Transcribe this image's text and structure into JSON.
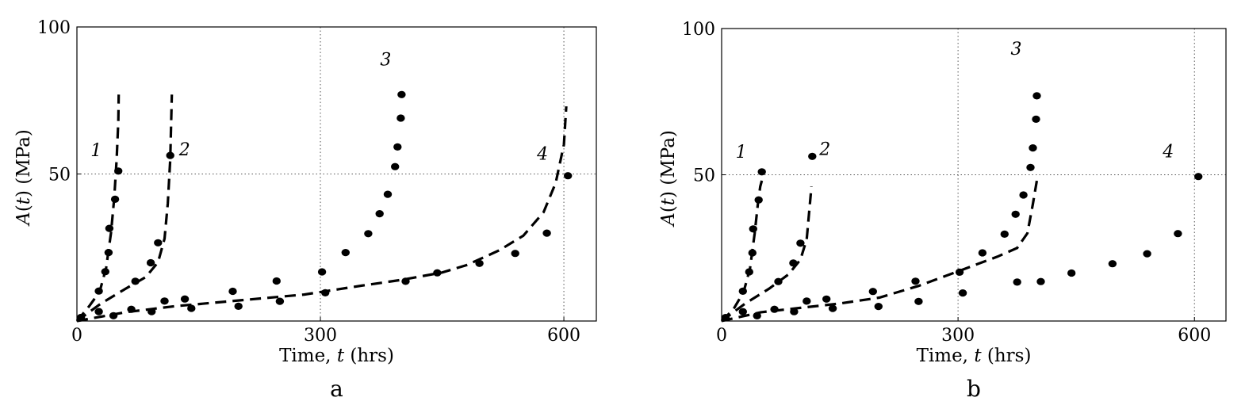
{
  "chart_data": [
    {
      "type": "scatter",
      "panel_label": "a",
      "xlabel": "Time, t (hrs)",
      "ylabel": "A(t) (MPa)",
      "xlim": [
        0,
        640
      ],
      "ylim": [
        0,
        100
      ],
      "xticks": [
        0,
        300,
        600
      ],
      "yticks": [
        50,
        100
      ],
      "grid": "dotted at x=300, x=600, y=50",
      "series": [
        {
          "curve_label": "1",
          "points": [
            [
              27,
              10.2
            ],
            [
              35,
              16.8
            ],
            [
              39,
              23.3
            ],
            [
              40,
              31.5
            ],
            [
              47,
              41.4
            ],
            [
              51,
              51.0
            ]
          ],
          "fit": [
            [
              0,
              0
            ],
            [
              15,
              5
            ],
            [
              28,
              10
            ],
            [
              36,
              18
            ],
            [
              42,
              30
            ],
            [
              46,
              42
            ],
            [
              49,
              55
            ],
            [
              51,
              68
            ],
            [
              51.5,
              77
            ]
          ]
        },
        {
          "curve_label": "2",
          "points": [
            [
              27,
              3.2
            ],
            [
              72,
              13.5
            ],
            [
              91,
              19.8
            ],
            [
              100,
              26.6
            ],
            [
              115,
              56.3
            ]
          ],
          "fit": [
            [
              0,
              0
            ],
            [
              30,
              6
            ],
            [
              60,
              11
            ],
            [
              85,
              15
            ],
            [
              100,
              20
            ],
            [
              108,
              28
            ],
            [
              112,
              40
            ],
            [
              115,
              55
            ],
            [
              116,
              66
            ],
            [
              117,
              77
            ]
          ]
        },
        {
          "curve_label": "3",
          "points": [
            [
              5,
              1.2
            ],
            [
              45,
              1.8
            ],
            [
              67,
              4.0
            ],
            [
              92,
              3.2
            ],
            [
              108,
              6.8
            ],
            [
              133,
              7.5
            ],
            [
              141,
              4.3
            ],
            [
              192,
              10.1
            ],
            [
              199,
              5.0
            ],
            [
              246,
              13.6
            ],
            [
              250,
              6.7
            ],
            [
              302,
              16.7
            ],
            [
              306,
              9.6
            ],
            [
              331,
              23.3
            ],
            [
              359,
              29.7
            ],
            [
              373,
              36.5
            ],
            [
              383,
              43.1
            ],
            [
              392,
              52.5
            ],
            [
              395,
              59.2
            ],
            [
              399,
              69.0
            ],
            [
              400,
              77.0
            ]
          ],
          "fit": []
        },
        {
          "curve_label": "4",
          "points": [
            [
              405,
              13.5
            ],
            [
              444,
              16.4
            ],
            [
              496,
              19.6
            ],
            [
              540,
              23.0
            ],
            [
              579,
              29.9
            ],
            [
              605,
              49.4
            ]
          ],
          "fit": [
            [
              0,
              0
            ],
            [
              60,
              3
            ],
            [
              120,
              5
            ],
            [
              200,
              7
            ],
            [
              280,
              9
            ],
            [
              350,
              12
            ],
            [
              400,
              14
            ],
            [
              450,
              16.5
            ],
            [
              480,
              19
            ],
            [
              520,
              24
            ],
            [
              550,
              29
            ],
            [
              575,
              37
            ],
            [
              590,
              47
            ],
            [
              600,
              60
            ],
            [
              603,
              73
            ]
          ]
        }
      ]
    },
    {
      "type": "scatter",
      "panel_label": "b",
      "xlabel": "Time, t (hrs)",
      "ylabel": "A(t) (MPa)",
      "xlim": [
        0,
        640
      ],
      "ylim": [
        0,
        100
      ],
      "xticks": [
        0,
        300,
        600
      ],
      "yticks": [
        50,
        100
      ],
      "grid": "dotted at x=300, x=600, y=50",
      "series": [
        {
          "curve_label": "1",
          "points": [
            [
              27,
              10.2
            ],
            [
              35,
              16.8
            ],
            [
              39,
              23.3
            ],
            [
              40,
              31.5
            ],
            [
              47,
              41.4
            ],
            [
              51,
              51.0
            ]
          ],
          "fit": [
            [
              0,
              0
            ],
            [
              15,
              4
            ],
            [
              28,
              10
            ],
            [
              36,
              18
            ],
            [
              42,
              30
            ],
            [
              46,
              40
            ],
            [
              49,
              46
            ],
            [
              51,
              48
            ]
          ]
        },
        {
          "curve_label": "2",
          "points": [
            [
              27,
              3.2
            ],
            [
              72,
              13.5
            ],
            [
              91,
              19.8
            ],
            [
              100,
              26.6
            ],
            [
              115,
              56.3
            ]
          ],
          "fit": [
            [
              0,
              0
            ],
            [
              30,
              6
            ],
            [
              60,
              11
            ],
            [
              85,
              16
            ],
            [
              100,
              21
            ],
            [
              108,
              28
            ],
            [
              112,
              40
            ],
            [
              114,
              46
            ]
          ]
        },
        {
          "curve_label": "3",
          "points": [
            [
              5,
              1.2
            ],
            [
              45,
              1.8
            ],
            [
              67,
              4.0
            ],
            [
              92,
              3.2
            ],
            [
              108,
              6.8
            ],
            [
              133,
              7.5
            ],
            [
              141,
              4.3
            ],
            [
              192,
              10.1
            ],
            [
              199,
              5.0
            ],
            [
              246,
              13.6
            ],
            [
              250,
              6.7
            ],
            [
              302,
              16.7
            ],
            [
              306,
              9.6
            ],
            [
              331,
              23.3
            ],
            [
              359,
              29.7
            ],
            [
              373,
              36.5
            ],
            [
              383,
              43.1
            ],
            [
              392,
              52.5
            ],
            [
              395,
              59.2
            ],
            [
              399,
              69.0
            ],
            [
              400,
              77.0
            ]
          ],
          "fit": [
            [
              0,
              0
            ],
            [
              50,
              3
            ],
            [
              100,
              4.5
            ],
            [
              150,
              6
            ],
            [
              200,
              8
            ],
            [
              250,
              12
            ],
            [
              290,
              16
            ],
            [
              320,
              19
            ],
            [
              350,
              22
            ],
            [
              375,
              25
            ],
            [
              388,
              30
            ],
            [
              395,
              40
            ],
            [
              400,
              48
            ]
          ]
        },
        {
          "curve_label": "4",
          "points": [
            [
              375,
              13.3
            ],
            [
              405,
              13.5
            ],
            [
              444,
              16.4
            ],
            [
              496,
              19.6
            ],
            [
              540,
              23.0
            ],
            [
              579,
              29.9
            ],
            [
              605,
              49.4
            ]
          ],
          "fit": []
        }
      ]
    }
  ]
}
